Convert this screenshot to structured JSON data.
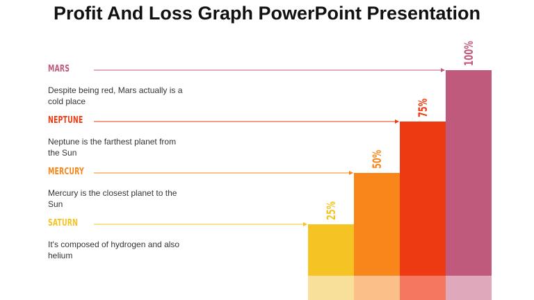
{
  "title": "Profit And Loss Graph PowerPoint Presentation",
  "chart_data": {
    "type": "bar",
    "categories": [
      "SATURN",
      "MERCURY",
      "NEPTUNE",
      "MARS"
    ],
    "values": [
      25,
      50,
      75,
      100
    ],
    "data_labels": [
      "25%",
      "50%",
      "75%",
      "100%"
    ],
    "descriptions": [
      "It's composed of hydrogen and also helium",
      "Mercury is the closest planet to the Sun",
      "Neptune is the farthest planet from the Sun",
      "Despite being red, Mars actually is a cold place"
    ],
    "colors": [
      "#f6c324",
      "#f8861a",
      "#ee3a12",
      "#c05a7c"
    ],
    "light_colors": [
      "#f8e09a",
      "#fbbf8a",
      "#f5775f",
      "#e0a8bb"
    ],
    "ylim": [
      0,
      100
    ],
    "grid": false,
    "legend": "none"
  }
}
